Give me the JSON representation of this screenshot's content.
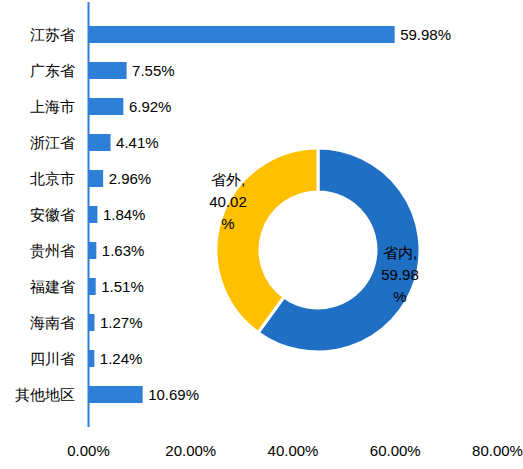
{
  "chart_data": [
    {
      "type": "bar",
      "orientation": "horizontal",
      "categories": [
        "江苏省",
        "广东省",
        "上海市",
        "浙江省",
        "北京市",
        "安徽省",
        "贵州省",
        "福建省",
        "海南省",
        "四川省",
        "其他地区"
      ],
      "values": [
        59.98,
        7.55,
        6.92,
        4.41,
        2.96,
        1.84,
        1.63,
        1.51,
        1.27,
        1.24,
        10.69
      ],
      "value_labels": [
        "59.98%",
        "7.55%",
        "6.92%",
        "4.41%",
        "2.96%",
        "1.84%",
        "1.63%",
        "1.51%",
        "1.27%",
        "1.24%",
        "10.69%"
      ],
      "data_labels": true,
      "color": "#2f7ed8",
      "xlim": [
        0,
        80
      ],
      "xticks": [
        {
          "value": 0,
          "label": "0.00%"
        },
        {
          "value": 20,
          "label": "20.00%"
        },
        {
          "value": 40,
          "label": "40.00%"
        },
        {
          "value": 60,
          "label": "60.00%"
        },
        {
          "value": 80,
          "label": "80.00%"
        }
      ],
      "grid": false
    },
    {
      "type": "pie",
      "categories": [
        "省内",
        "省外"
      ],
      "values": [
        59.98,
        40.02
      ],
      "value_labels": [
        "省内,59.98%",
        "省外,40.02%"
      ],
      "data_labels": true,
      "colors": [
        "#1f6fc5",
        "#ffc000"
      ]
    }
  ]
}
